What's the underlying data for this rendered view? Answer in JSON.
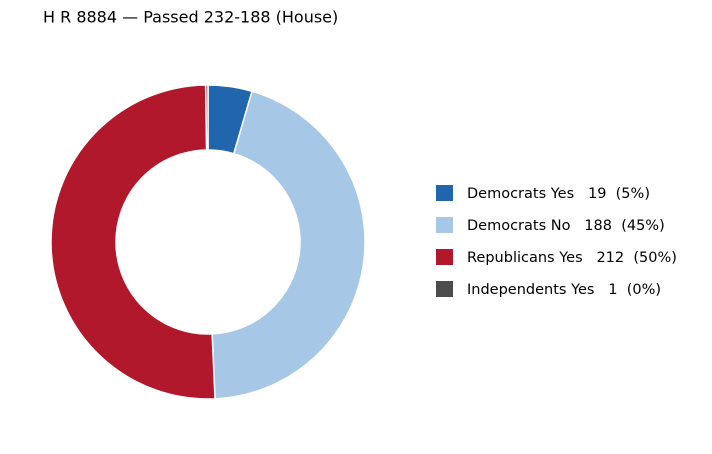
{
  "chart_data": {
    "type": "donut",
    "title": "H R 8884 — Passed 232-188 (House)",
    "categories": [
      "Democrats Yes   19  (5%)",
      "Democrats No   188  (45%)",
      "Republicans Yes   212  (50%)",
      "Independents Yes   1  (0%)"
    ],
    "values": [
      19,
      188,
      212,
      1
    ],
    "colors": [
      "#2166ac",
      "#a6c8e6",
      "#b2182b",
      "#4d4d4d"
    ]
  }
}
